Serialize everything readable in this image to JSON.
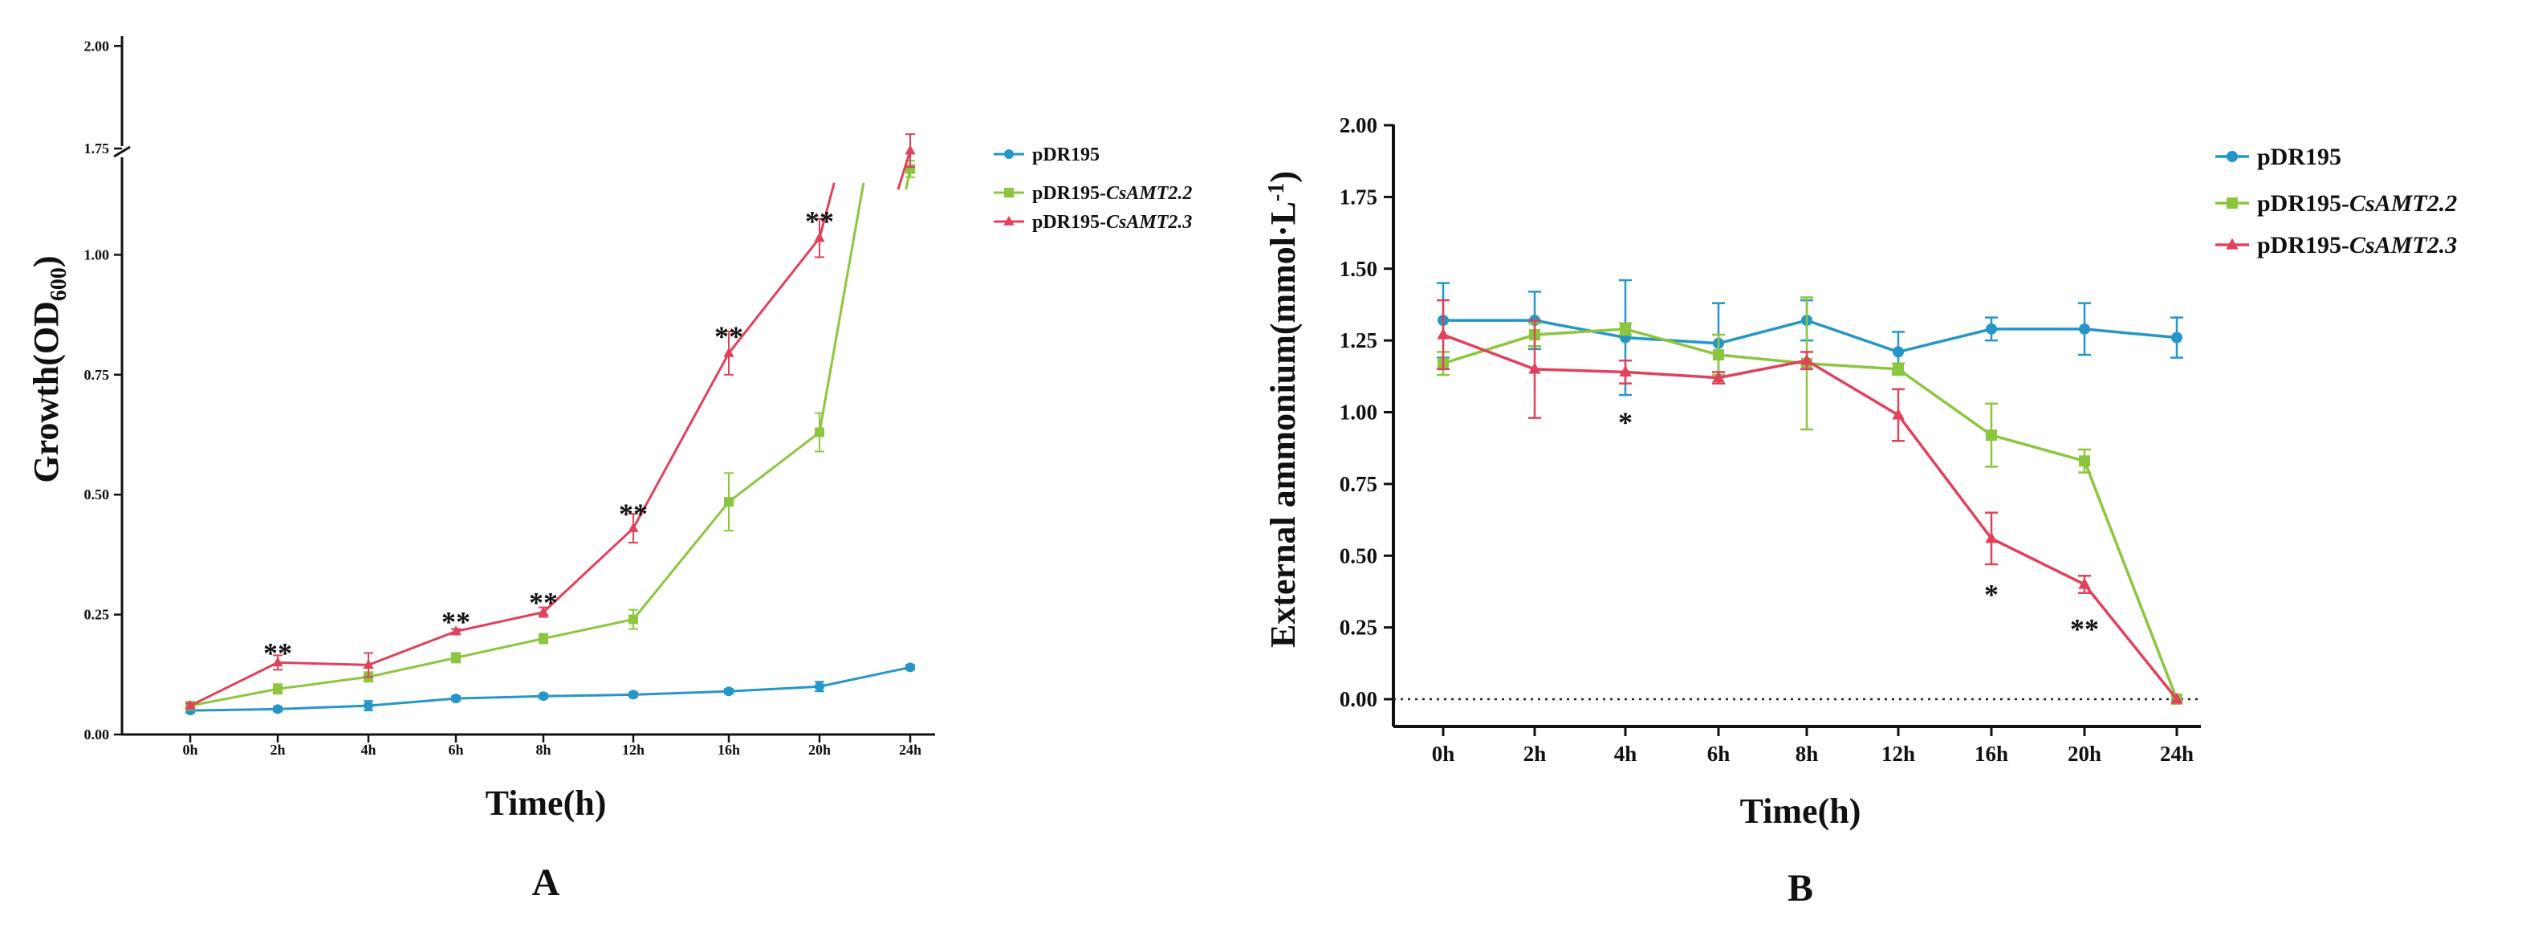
{
  "colors": {
    "pDR195": "#2596c7",
    "pDR195-CsAMT2.2": "#8cc63f",
    "pDR195-CsAMT2.3": "#e0425c"
  },
  "chart_data": [
    {
      "type": "line",
      "panel_label": "A",
      "xlabel": "Time(h)",
      "ylabel_main": "Growth(OD",
      "ylabel_sub": "600",
      "ylabel_close": ")",
      "categories": [
        "0h",
        "2h",
        "4h",
        "6h",
        "8h",
        "12h",
        "16h",
        "20h",
        "24h"
      ],
      "y_ticks_lower": [
        "0.00",
        "0.25",
        "0.50",
        "0.75",
        "1.00"
      ],
      "y_ticks_upper": [
        "1.75",
        "2.00"
      ],
      "axis_break": [
        1.15,
        1.65
      ],
      "ylim": [
        0,
        2.0
      ],
      "legend_position": "right",
      "series": [
        {
          "name": "pDR195",
          "name_prefix": "pDR195",
          "name_italic": "",
          "marker": "circle",
          "values": [
            0.05,
            0.053,
            0.06,
            0.075,
            0.08,
            0.083,
            0.09,
            0.1,
            0.14
          ],
          "errors": [
            0.005,
            0.005,
            0.01,
            0.005,
            0.005,
            0.005,
            0.005,
            0.01,
            0.005
          ]
        },
        {
          "name": "pDR195-CsAMT2.2",
          "name_prefix": "pDR195-",
          "name_italic": "CsAMT2.2",
          "marker": "square",
          "values": [
            0.06,
            0.095,
            0.12,
            0.16,
            0.2,
            0.24,
            0.485,
            0.63,
            1.7
          ],
          "errors": [
            0.005,
            0.01,
            0.01,
            0.01,
            0.01,
            0.02,
            0.06,
            0.04,
            0.02
          ]
        },
        {
          "name": "pDR195-CsAMT2.3",
          "name_prefix": "pDR195-",
          "name_italic": "CsAMT2.3",
          "marker": "triangle",
          "values": [
            0.06,
            0.15,
            0.145,
            0.215,
            0.255,
            0.43,
            0.795,
            1.035,
            1.745
          ],
          "errors": [
            0.005,
            0.015,
            0.025,
            0.005,
            0.01,
            0.03,
            0.045,
            0.04,
            0.04
          ]
        }
      ],
      "annotations": [
        {
          "category": "2h",
          "y": 0.17,
          "text": "**"
        },
        {
          "category": "6h",
          "y": 0.235,
          "text": "**"
        },
        {
          "category": "8h",
          "y": 0.275,
          "text": "**"
        },
        {
          "category": "12h",
          "y": 0.46,
          "text": "**"
        },
        {
          "category": "16h",
          "y": 0.83,
          "text": "**"
        },
        {
          "category": "20h",
          "y": 1.07,
          "text": "**"
        }
      ]
    },
    {
      "type": "line",
      "panel_label": "B",
      "xlabel": "Time(h)",
      "ylabel": "External ammonium(mmol·L",
      "ylabel_sup": "-1",
      "ylabel_close": ")",
      "categories": [
        "0h",
        "2h",
        "4h",
        "6h",
        "8h",
        "12h",
        "16h",
        "20h",
        "24h"
      ],
      "y_ticks": [
        "0.00",
        "0.25",
        "0.50",
        "0.75",
        "1.00",
        "1.25",
        "1.50",
        "1.75",
        "2.00"
      ],
      "ylim": [
        0,
        2.0
      ],
      "reference_line": 0,
      "legend_position": "right",
      "series": [
        {
          "name": "pDR195",
          "name_prefix": "pDR195",
          "name_italic": "",
          "marker": "circle",
          "values": [
            1.32,
            1.32,
            1.26,
            1.24,
            1.32,
            1.21,
            1.29,
            1.29,
            1.26
          ],
          "errors": [
            0.13,
            0.1,
            0.2,
            0.14,
            0.07,
            0.07,
            0.04,
            0.09,
            0.07
          ]
        },
        {
          "name": "pDR195-CsAMT2.2",
          "name_prefix": "pDR195-",
          "name_italic": "CsAMT2.2",
          "marker": "square",
          "values": [
            1.17,
            1.27,
            1.29,
            1.2,
            1.17,
            1.15,
            0.92,
            0.83,
            0.0
          ],
          "errors": [
            0.04,
            0.04,
            0.02,
            0.07,
            0.23,
            0.02,
            0.11,
            0.04,
            0.0
          ]
        },
        {
          "name": "pDR195-CsAMT2.3",
          "name_prefix": "pDR195-",
          "name_italic": "CsAMT2.3",
          "marker": "triangle",
          "values": [
            1.27,
            1.15,
            1.14,
            1.12,
            1.18,
            0.99,
            0.56,
            0.4,
            0.0
          ],
          "errors": [
            0.12,
            0.17,
            0.04,
            0.02,
            0.03,
            0.09,
            0.09,
            0.03,
            0.0
          ]
        }
      ],
      "annotations": [
        {
          "category": "4h",
          "y": 0.97,
          "text": "*"
        },
        {
          "category": "16h",
          "y": 0.37,
          "text": "*"
        },
        {
          "category": "20h",
          "y": 0.25,
          "text": "**"
        }
      ]
    }
  ]
}
